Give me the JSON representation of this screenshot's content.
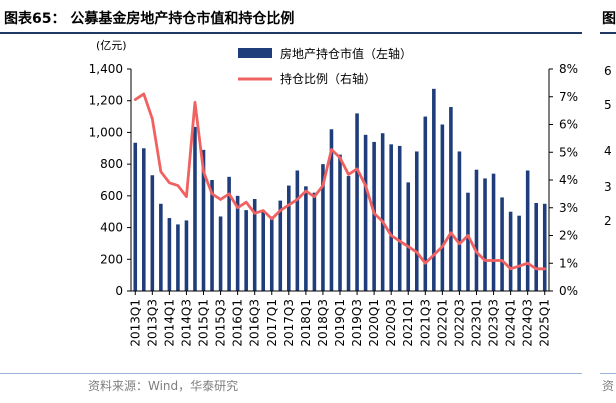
{
  "figure": {
    "title": "图表65： 公募基金房地产持仓市值和持仓比例",
    "source": "资料来源：Wind，华泰研究"
  },
  "chart_data": {
    "type": "bar",
    "y_left_unit": "(亿元)",
    "ylim_left": [
      0,
      1400
    ],
    "yticks_left": [
      "0",
      "200",
      "400",
      "600",
      "800",
      "1,000",
      "1,200",
      "1,400"
    ],
    "ylim_right": [
      0,
      8
    ],
    "yticks_right": [
      "0%",
      "1%",
      "2%",
      "3%",
      "4%",
      "5%",
      "6%",
      "7%",
      "8%"
    ],
    "x_tick_labels": [
      "2013Q1",
      "2013Q3",
      "2014Q1",
      "2014Q3",
      "2015Q1",
      "2015Q3",
      "2016Q1",
      "2016Q3",
      "2017Q1",
      "2017Q3",
      "2018Q1",
      "2018Q3",
      "2019Q1",
      "2019Q3",
      "2020Q1",
      "2020Q3",
      "2021Q1",
      "2021Q3",
      "2022Q1",
      "2022Q3",
      "2023Q1",
      "2023Q3",
      "2024Q1",
      "2024Q3",
      "2025Q1"
    ],
    "categories": [
      "2013Q1",
      "2013Q2",
      "2013Q3",
      "2013Q4",
      "2014Q1",
      "2014Q2",
      "2014Q3",
      "2014Q4",
      "2015Q1",
      "2015Q2",
      "2015Q3",
      "2015Q4",
      "2016Q1",
      "2016Q2",
      "2016Q3",
      "2016Q4",
      "2017Q1",
      "2017Q2",
      "2017Q3",
      "2017Q4",
      "2018Q1",
      "2018Q2",
      "2018Q3",
      "2018Q4",
      "2019Q1",
      "2019Q2",
      "2019Q3",
      "2019Q4",
      "2020Q1",
      "2020Q2",
      "2020Q3",
      "2020Q4",
      "2021Q1",
      "2021Q2",
      "2021Q3",
      "2021Q4",
      "2022Q1",
      "2022Q2",
      "2022Q3",
      "2022Q4",
      "2023Q1",
      "2023Q2",
      "2023Q3",
      "2023Q4",
      "2024Q1",
      "2024Q2",
      "2024Q3",
      "2024Q4",
      "2025Q1"
    ],
    "series": [
      {
        "name": "房地产持仓市值（左轴）",
        "axis": "left",
        "kind": "bar",
        "color": "#1f3d7a",
        "values": [
          935,
          900,
          730,
          550,
          460,
          420,
          445,
          1035,
          890,
          700,
          470,
          720,
          600,
          510,
          580,
          500,
          470,
          570,
          665,
          760,
          660,
          620,
          800,
          1020,
          860,
          725,
          1120,
          985,
          940,
          995,
          925,
          915,
          685,
          880,
          1100,
          1275,
          1050,
          1160,
          880,
          620,
          765,
          710,
          740,
          590,
          500,
          475,
          760,
          555,
          550
        ]
      },
      {
        "name": "持仓比例（右轴）",
        "axis": "right",
        "kind": "line",
        "color": "#f06262",
        "values": [
          6.9,
          7.1,
          6.2,
          4.3,
          3.9,
          3.8,
          3.4,
          6.8,
          4.3,
          3.5,
          3.3,
          3.5,
          3.0,
          3.2,
          2.8,
          2.9,
          2.6,
          2.9,
          3.1,
          3.3,
          3.6,
          3.4,
          3.8,
          5.1,
          4.8,
          4.2,
          4.4,
          3.8,
          2.8,
          2.5,
          2.0,
          1.8,
          1.6,
          1.4,
          1.0,
          1.3,
          1.6,
          2.1,
          1.7,
          2.0,
          1.4,
          1.1,
          1.1,
          1.1,
          0.8,
          0.9,
          1.0,
          0.8,
          0.8
        ]
      }
    ],
    "legend_position": "top-center",
    "grid": false
  }
}
